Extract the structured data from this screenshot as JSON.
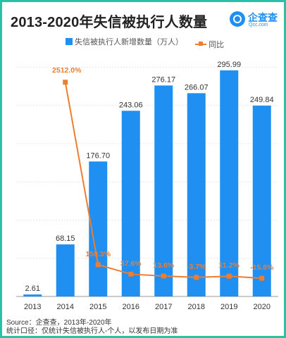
{
  "title": "2013-2020年失信被执行人数量",
  "logo": {
    "name": "企查查",
    "sub": "Qcc.com"
  },
  "source": "Source：企查查，2013年-2020年",
  "note": "统计口径：仅统计失信被执行人-个人，以发布日期为准",
  "colors": {
    "bar": "#1f8ff2",
    "line": "#ed7d31",
    "frame": "#29c2a5"
  },
  "chart_data": {
    "type": "bar",
    "categories": [
      "2013",
      "2014",
      "2015",
      "2016",
      "2017",
      "2018",
      "2019",
      "2020"
    ],
    "series": [
      {
        "name": "失信被执行人新增数量（万人）",
        "type": "bar",
        "values": [
          2.61,
          68.15,
          176.7,
          243.06,
          276.17,
          266.07,
          295.99,
          249.84
        ],
        "labels": [
          "2.61",
          "68.15",
          "176.70",
          "243.06",
          "276.17",
          "266.07",
          "295.99",
          "249.84"
        ]
      },
      {
        "name": "同比",
        "type": "line",
        "values": [
          null,
          2512.0,
          159.3,
          37.6,
          13.6,
          -3.7,
          11.2,
          -15.6
        ],
        "labels": [
          "",
          "2512.0%",
          "159.3%",
          "37.6%",
          "13.6%",
          "-3.7%",
          "11.2%",
          "-15.6%"
        ]
      }
    ],
    "ylim": [
      0,
      330
    ],
    "y2lim": [
      -250,
      3000
    ],
    "grid": true,
    "legend": "top"
  }
}
